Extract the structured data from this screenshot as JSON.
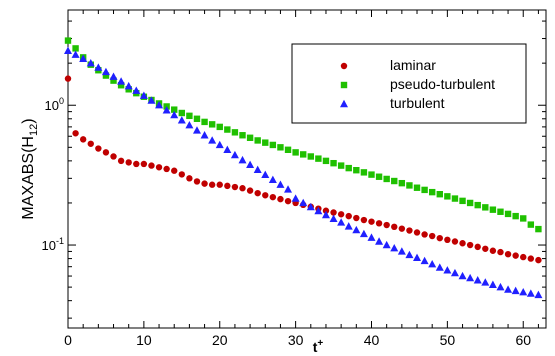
{
  "chart_data": {
    "type": "scatter",
    "xlabel": "t",
    "xlabel_sup": "+",
    "ylabel_main": "MAXABS(H",
    "ylabel_sub": "12",
    "ylabel_close": ")",
    "xlim": [
      0,
      63
    ],
    "ylim": [
      0.0255,
      4.8
    ],
    "yscale": "log",
    "grid": false,
    "legend_position": "top-right",
    "x_ticks": [
      {
        "value": 0,
        "label": "0"
      },
      {
        "value": 10,
        "label": "10"
      },
      {
        "value": 20,
        "label": "20"
      },
      {
        "value": 30,
        "label": "30"
      },
      {
        "value": 40,
        "label": "40"
      },
      {
        "value": 50,
        "label": "50"
      },
      {
        "value": 60,
        "label": "60"
      }
    ],
    "y_ticks": [
      {
        "value": 1,
        "base": "10",
        "exp": "0"
      },
      {
        "value": 0.1,
        "base": "10",
        "exp": "-1"
      }
    ],
    "series": [
      {
        "name": "laminar",
        "marker": "circle",
        "color": "#c00000",
        "points": [
          [
            0,
            1.55
          ],
          [
            1,
            0.63
          ],
          [
            2,
            0.57
          ],
          [
            3,
            0.53
          ],
          [
            4,
            0.49
          ],
          [
            5,
            0.46
          ],
          [
            6,
            0.43
          ],
          [
            7,
            0.4
          ],
          [
            8,
            0.39
          ],
          [
            9,
            0.38
          ],
          [
            10,
            0.38
          ],
          [
            11,
            0.37
          ],
          [
            12,
            0.36
          ],
          [
            13,
            0.35
          ],
          [
            14,
            0.34
          ],
          [
            15,
            0.32
          ],
          [
            16,
            0.3
          ],
          [
            17,
            0.285
          ],
          [
            18,
            0.275
          ],
          [
            19,
            0.27
          ],
          [
            20,
            0.27
          ],
          [
            21,
            0.265
          ],
          [
            22,
            0.26
          ],
          [
            23,
            0.255
          ],
          [
            24,
            0.245
          ],
          [
            25,
            0.235
          ],
          [
            26,
            0.227
          ],
          [
            27,
            0.22
          ],
          [
            28,
            0.213
          ],
          [
            29,
            0.206
          ],
          [
            30,
            0.2
          ],
          [
            31,
            0.194
          ],
          [
            32,
            0.188
          ],
          [
            33,
            0.182
          ],
          [
            34,
            0.176
          ],
          [
            35,
            0.171
          ],
          [
            36,
            0.166
          ],
          [
            37,
            0.161
          ],
          [
            38,
            0.156
          ],
          [
            39,
            0.151
          ],
          [
            40,
            0.147
          ],
          [
            41,
            0.143
          ],
          [
            42,
            0.139
          ],
          [
            43,
            0.135
          ],
          [
            44,
            0.131
          ],
          [
            45,
            0.127
          ],
          [
            46,
            0.123
          ],
          [
            47,
            0.119
          ],
          [
            48,
            0.116
          ],
          [
            49,
            0.112
          ],
          [
            50,
            0.109
          ],
          [
            51,
            0.106
          ],
          [
            52,
            0.103
          ],
          [
            53,
            0.1
          ],
          [
            54,
            0.097
          ],
          [
            55,
            0.094
          ],
          [
            56,
            0.091
          ],
          [
            57,
            0.089
          ],
          [
            58,
            0.086
          ],
          [
            59,
            0.084
          ],
          [
            60,
            0.082
          ],
          [
            61,
            0.08
          ],
          [
            62,
            0.078
          ]
        ]
      },
      {
        "name": "pseudo-turbulent",
        "marker": "square",
        "color": "#1fc000",
        "points": [
          [
            0,
            2.9
          ],
          [
            1,
            2.55
          ],
          [
            2,
            2.2
          ],
          [
            3,
            1.95
          ],
          [
            4,
            1.78
          ],
          [
            5,
            1.63
          ],
          [
            6,
            1.5
          ],
          [
            7,
            1.39
          ],
          [
            8,
            1.3
          ],
          [
            9,
            1.22
          ],
          [
            10,
            1.15
          ],
          [
            11,
            1.09
          ],
          [
            12,
            1.03
          ],
          [
            13,
            0.98
          ],
          [
            14,
            0.93
          ],
          [
            15,
            0.88
          ],
          [
            16,
            0.84
          ],
          [
            17,
            0.8
          ],
          [
            18,
            0.76
          ],
          [
            19,
            0.73
          ],
          [
            20,
            0.7
          ],
          [
            21,
            0.67
          ],
          [
            22,
            0.64
          ],
          [
            23,
            0.61
          ],
          [
            24,
            0.585
          ],
          [
            25,
            0.56
          ],
          [
            26,
            0.54
          ],
          [
            27,
            0.52
          ],
          [
            28,
            0.5
          ],
          [
            29,
            0.48
          ],
          [
            30,
            0.46
          ],
          [
            31,
            0.445
          ],
          [
            32,
            0.43
          ],
          [
            33,
            0.415
          ],
          [
            34,
            0.4
          ],
          [
            35,
            0.385
          ],
          [
            36,
            0.37
          ],
          [
            37,
            0.355
          ],
          [
            38,
            0.343
          ],
          [
            39,
            0.331
          ],
          [
            40,
            0.319
          ],
          [
            41,
            0.308
          ],
          [
            42,
            0.297
          ],
          [
            43,
            0.287
          ],
          [
            44,
            0.277
          ],
          [
            45,
            0.267
          ],
          [
            46,
            0.257
          ],
          [
            47,
            0.248
          ],
          [
            48,
            0.239
          ],
          [
            49,
            0.231
          ],
          [
            50,
            0.223
          ],
          [
            51,
            0.215
          ],
          [
            52,
            0.207
          ],
          [
            53,
            0.2
          ],
          [
            54,
            0.193
          ],
          [
            55,
            0.186
          ],
          [
            56,
            0.179
          ],
          [
            57,
            0.173
          ],
          [
            58,
            0.167
          ],
          [
            59,
            0.161
          ],
          [
            60,
            0.155
          ],
          [
            61,
            0.14
          ],
          [
            62,
            0.13
          ]
        ]
      },
      {
        "name": "turbulent",
        "marker": "triangle",
        "color": "#2020ff",
        "points": [
          [
            0,
            2.45
          ],
          [
            1,
            2.3
          ],
          [
            2,
            2.15
          ],
          [
            3,
            2.0
          ],
          [
            4,
            1.86
          ],
          [
            5,
            1.73
          ],
          [
            6,
            1.6
          ],
          [
            7,
            1.48
          ],
          [
            8,
            1.37
          ],
          [
            9,
            1.27
          ],
          [
            10,
            1.17
          ],
          [
            11,
            1.08
          ],
          [
            12,
            1.0
          ],
          [
            13,
            0.92
          ],
          [
            14,
            0.85
          ],
          [
            15,
            0.78
          ],
          [
            16,
            0.72
          ],
          [
            17,
            0.66
          ],
          [
            18,
            0.61
          ],
          [
            19,
            0.56
          ],
          [
            20,
            0.52
          ],
          [
            21,
            0.48
          ],
          [
            22,
            0.44
          ],
          [
            23,
            0.405
          ],
          [
            24,
            0.375
          ],
          [
            25,
            0.345
          ],
          [
            26,
            0.318
          ],
          [
            27,
            0.293
          ],
          [
            28,
            0.27
          ],
          [
            29,
            0.25
          ],
          [
            30,
            0.215
          ],
          [
            31,
            0.2
          ],
          [
            32,
            0.187
          ],
          [
            33,
            0.175
          ],
          [
            34,
            0.164
          ],
          [
            35,
            0.154
          ],
          [
            36,
            0.145
          ],
          [
            37,
            0.136
          ],
          [
            38,
            0.128
          ],
          [
            39,
            0.12
          ],
          [
            40,
            0.113
          ],
          [
            41,
            0.106
          ],
          [
            42,
            0.1
          ],
          [
            43,
            0.095
          ],
          [
            44,
            0.09
          ],
          [
            45,
            0.085
          ],
          [
            46,
            0.081
          ],
          [
            47,
            0.077
          ],
          [
            48,
            0.073
          ],
          [
            49,
            0.069
          ],
          [
            50,
            0.066
          ],
          [
            51,
            0.063
          ],
          [
            52,
            0.06
          ],
          [
            53,
            0.058
          ],
          [
            54,
            0.056
          ],
          [
            55,
            0.054
          ],
          [
            56,
            0.052
          ],
          [
            57,
            0.05
          ],
          [
            58,
            0.048
          ],
          [
            59,
            0.047
          ],
          [
            60,
            0.046
          ],
          [
            61,
            0.045
          ],
          [
            62,
            0.044
          ]
        ]
      }
    ]
  }
}
